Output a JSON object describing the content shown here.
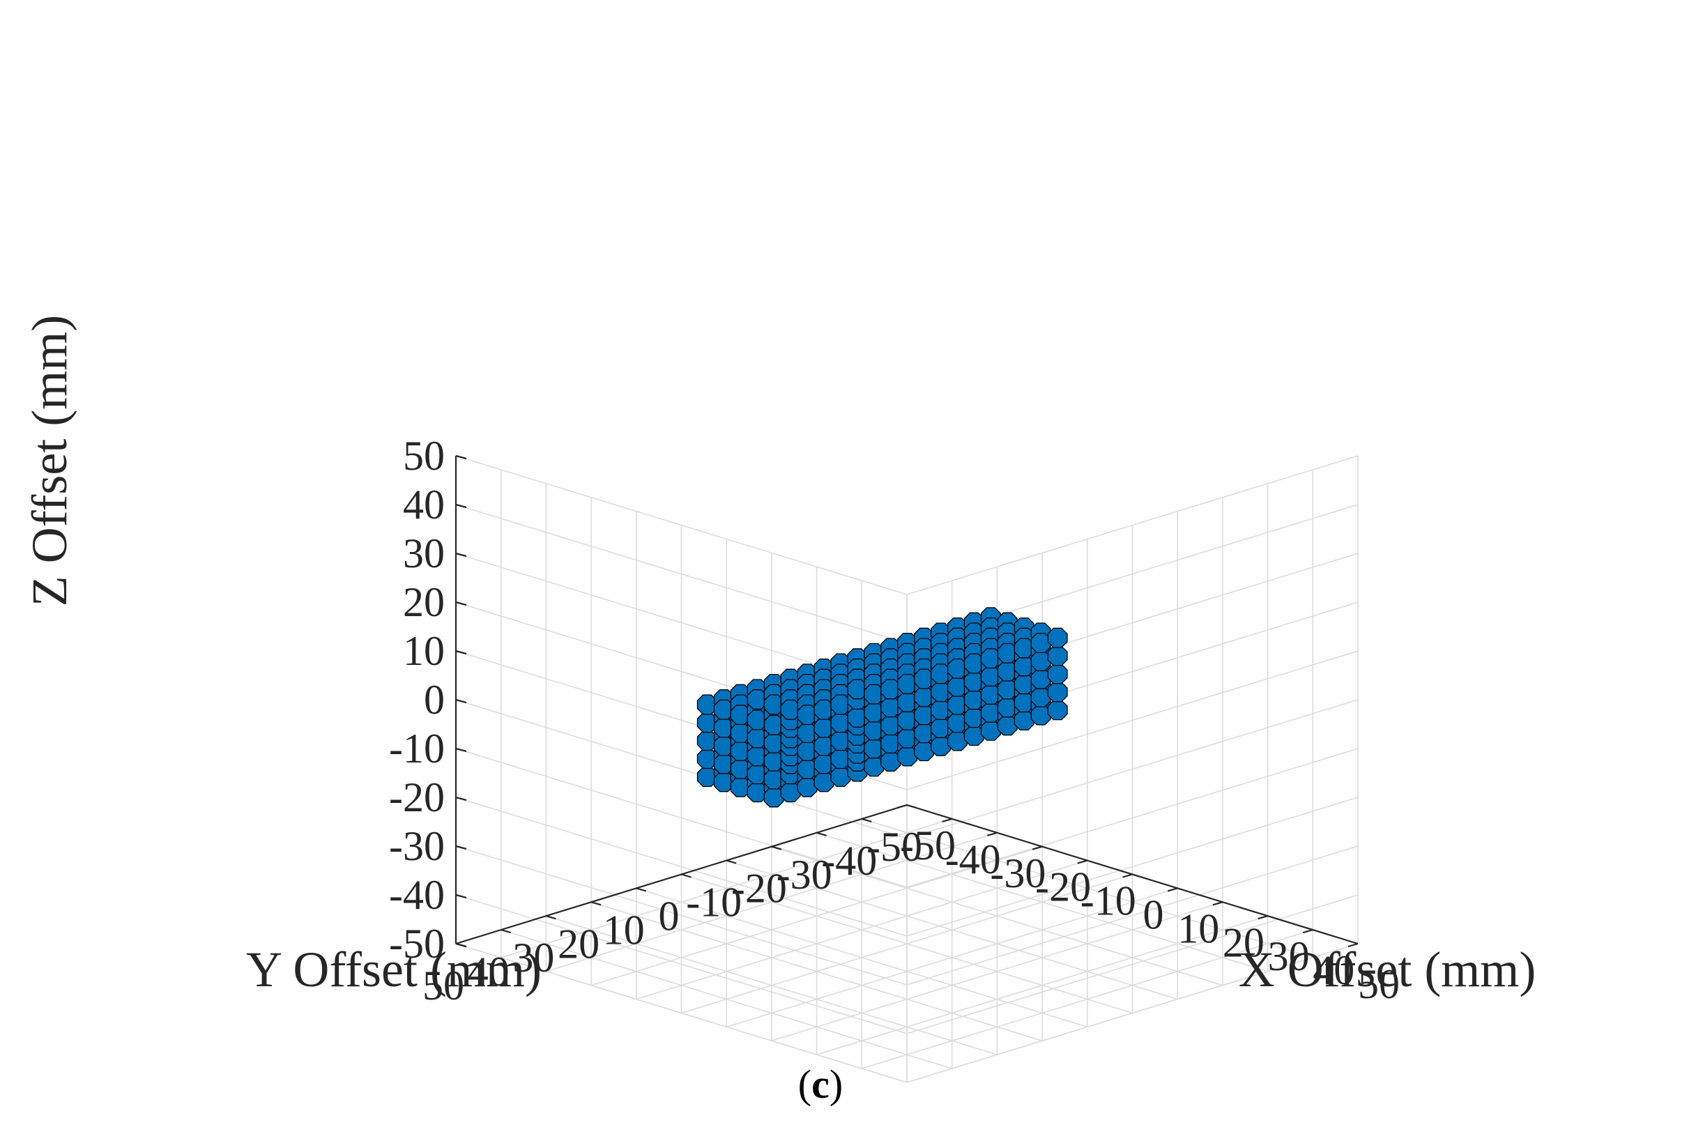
{
  "chart_data": {
    "type": "scatter",
    "plot_kind": "3d-voxel",
    "shape": "rod",
    "xlabel": "X Offset (mm)",
    "ylabel": "Y Offset (mm)",
    "zlabel": "Z Offset (mm)",
    "xlim": [
      -50,
      50
    ],
    "ylim": [
      -50,
      50
    ],
    "zlim": [
      -50,
      50
    ],
    "x_ticks": [
      "-50",
      "-40",
      "-30",
      "-20",
      "-10",
      "0",
      "10",
      "20",
      "30",
      "40",
      "50"
    ],
    "y_ticks": [
      "50",
      "40",
      "30",
      "20",
      "10",
      "0",
      "-10",
      "-20",
      "-30",
      "-40",
      "-50"
    ],
    "z_ticks": [
      "50",
      "40",
      "30",
      "20",
      "10",
      "0",
      "-10",
      "-20",
      "-30",
      "-40",
      "-50"
    ],
    "grid": true,
    "view": {
      "azimuth_deg": -37.5,
      "elevation_deg": 30
    },
    "rod": {
      "axis": "y",
      "y_range": [
        -26,
        40
      ],
      "x_center": 0,
      "z_center": 0,
      "radius": 11,
      "voxel_spacing": 3.7
    },
    "marker_color": "#0072BD",
    "marker_edge_color": "#000000"
  },
  "caption": {
    "open": "(",
    "letter": "c",
    "close": ")"
  }
}
